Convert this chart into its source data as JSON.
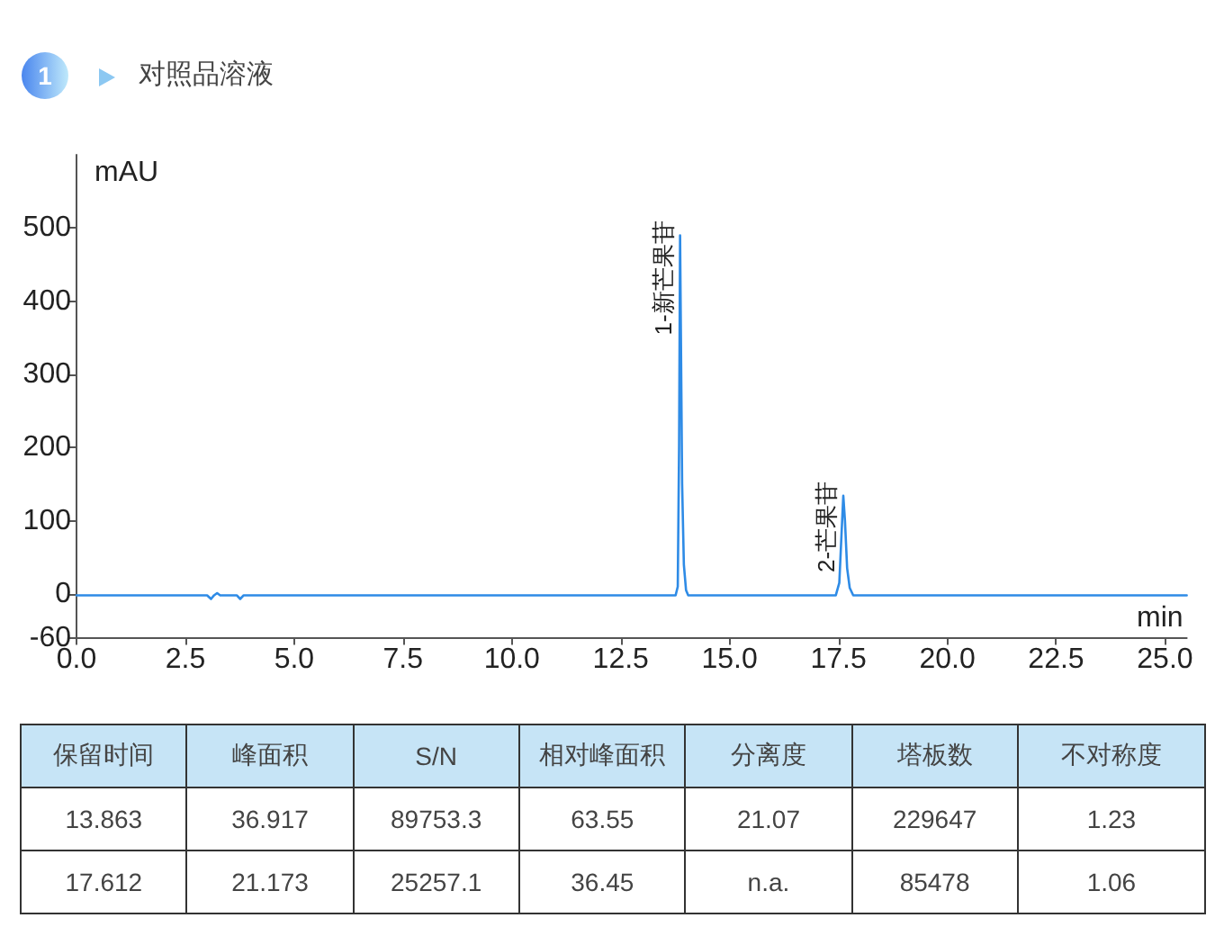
{
  "chart_data": [
    {
      "type": "line",
      "title": "对照品溶液",
      "xlabel": "min",
      "ylabel": "mAU",
      "annotations": [
        "1",
        {
          "text": "1-新芒果苷",
          "x": 13.863,
          "y": 490
        },
        {
          "text": "2-芒果苷",
          "x": 17.612,
          "y": 134
        }
      ],
      "x": [
        0,
        3.0,
        3.09,
        3.16,
        3.23,
        3.3,
        3.68,
        3.76,
        3.84,
        13.76,
        13.81,
        13.84,
        13.863,
        13.885,
        13.91,
        13.95,
        14.0,
        14.05,
        17.44,
        17.52,
        17.57,
        17.612,
        17.65,
        17.7,
        17.76,
        17.84,
        25.5
      ],
      "values": [
        -2,
        -2,
        -7,
        -2,
        1,
        -2,
        -2,
        -7,
        -2,
        -2,
        10,
        200,
        490,
        330,
        150,
        40,
        5,
        -2,
        -2,
        15,
        80,
        134,
        100,
        35,
        8,
        -2,
        -2
      ],
      "color": "#2e8be6",
      "marker": "none",
      "xlim": [
        0,
        25.5
      ],
      "xticks": [
        {
          "value": 0,
          "label": "0.0"
        },
        2.5,
        {
          "value": 5,
          "label": "5.0"
        },
        7.5,
        {
          "value": 10,
          "label": "10.0"
        },
        12.5,
        {
          "value": 15,
          "label": "15.0"
        },
        17.5,
        {
          "value": 20,
          "label": "20.0"
        },
        22.5,
        {
          "value": 25,
          "label": "25.0"
        }
      ],
      "ylim": [
        -60,
        600
      ],
      "yticks": [
        -60,
        0,
        100,
        200,
        300,
        400,
        500
      ]
    },
    {
      "type": "other",
      "categories": [
        "保留时间",
        "峰面积",
        "S/N",
        "相对峰面积",
        "分离度",
        "塔板数",
        "不对称度"
      ],
      "data_labels": true,
      "series": [
        {
          "values": [
            13.863,
            36.917,
            89753.3,
            63.55,
            21.07,
            229647,
            1.23
          ]
        },
        {
          "values": [
            17.612,
            21.173,
            25257.1,
            36.45,
            null,
            85478,
            1.06
          ],
          "value_labels": [
            "17.612",
            "21.173",
            "25257.1",
            "36.45",
            "n.a.",
            "85478",
            "1.06"
          ]
        }
      ]
    }
  ]
}
